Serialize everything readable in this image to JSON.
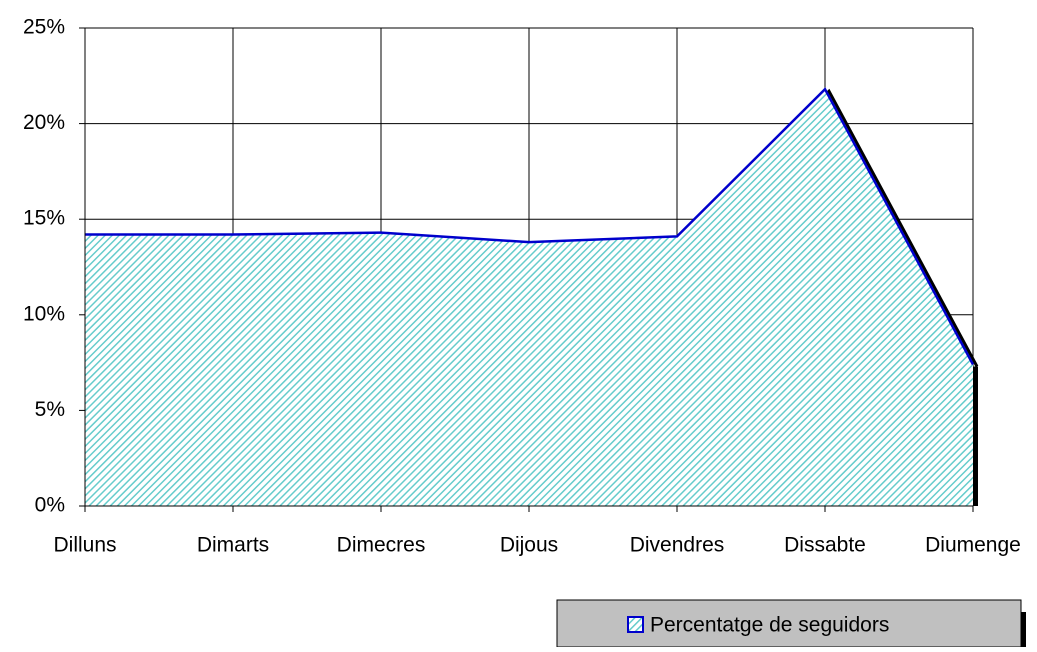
{
  "chart_data": {
    "type": "area",
    "categories": [
      "Dilluns",
      "Dimarts",
      "Dimecres",
      "Dijous",
      "Divendres",
      "Dissabte",
      "Diumenge"
    ],
    "series": [
      {
        "name": "Percentatge de seguidors",
        "color": "#0000cc",
        "fill": "#66cccc",
        "values": [
          14.2,
          14.2,
          14.3,
          13.8,
          14.1,
          21.8,
          7.4
        ]
      }
    ],
    "ylim": [
      0,
      25
    ],
    "yticks": [
      {
        "value": 0,
        "label": "0%"
      },
      {
        "value": 5,
        "label": "5%"
      },
      {
        "value": 10,
        "label": "10%"
      },
      {
        "value": 15,
        "label": "15%"
      },
      {
        "value": 20,
        "label": "20%"
      },
      {
        "value": 25,
        "label": "25%"
      }
    ],
    "grid": true,
    "legend": "bottom-right"
  }
}
